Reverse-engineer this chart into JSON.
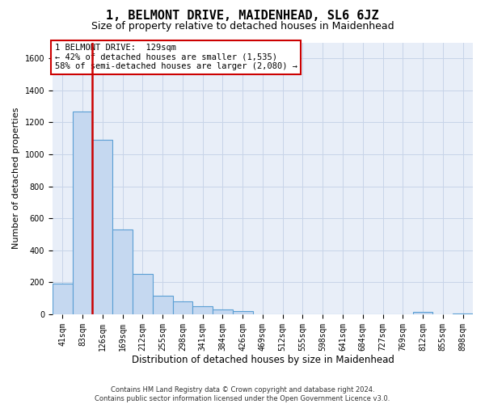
{
  "title": "1, BELMONT DRIVE, MAIDENHEAD, SL6 6JZ",
  "subtitle": "Size of property relative to detached houses in Maidenhead",
  "xlabel": "Distribution of detached houses by size in Maidenhead",
  "ylabel": "Number of detached properties",
  "footer_line1": "Contains HM Land Registry data © Crown copyright and database right 2024.",
  "footer_line2": "Contains public sector information licensed under the Open Government Licence v3.0.",
  "bin_labels": [
    "41sqm",
    "83sqm",
    "126sqm",
    "169sqm",
    "212sqm",
    "255sqm",
    "298sqm",
    "341sqm",
    "384sqm",
    "426sqm",
    "469sqm",
    "512sqm",
    "555sqm",
    "598sqm",
    "641sqm",
    "684sqm",
    "727sqm",
    "769sqm",
    "812sqm",
    "855sqm",
    "898sqm"
  ],
  "bar_values": [
    190,
    1270,
    1090,
    530,
    250,
    115,
    80,
    50,
    30,
    20,
    0,
    0,
    0,
    0,
    0,
    0,
    0,
    0,
    15,
    0,
    5
  ],
  "bar_color": "#c5d8f0",
  "bar_edge_color": "#5a9fd4",
  "vline_color": "#cc0000",
  "vline_position": 1.5,
  "annotation_text": "1 BELMONT DRIVE:  129sqm\n← 42% of detached houses are smaller (1,535)\n58% of semi-detached houses are larger (2,080) →",
  "annotation_box_facecolor": "white",
  "annotation_box_edgecolor": "#cc0000",
  "ylim_max": 1700,
  "yticks": [
    0,
    200,
    400,
    600,
    800,
    1000,
    1200,
    1400,
    1600
  ],
  "grid_color": "#c8d4e8",
  "bg_color": "#e8eef8",
  "title_fontsize": 11,
  "subtitle_fontsize": 9,
  "annot_fontsize": 7.5,
  "ylabel_fontsize": 8,
  "xlabel_fontsize": 8.5,
  "tick_fontsize": 7
}
